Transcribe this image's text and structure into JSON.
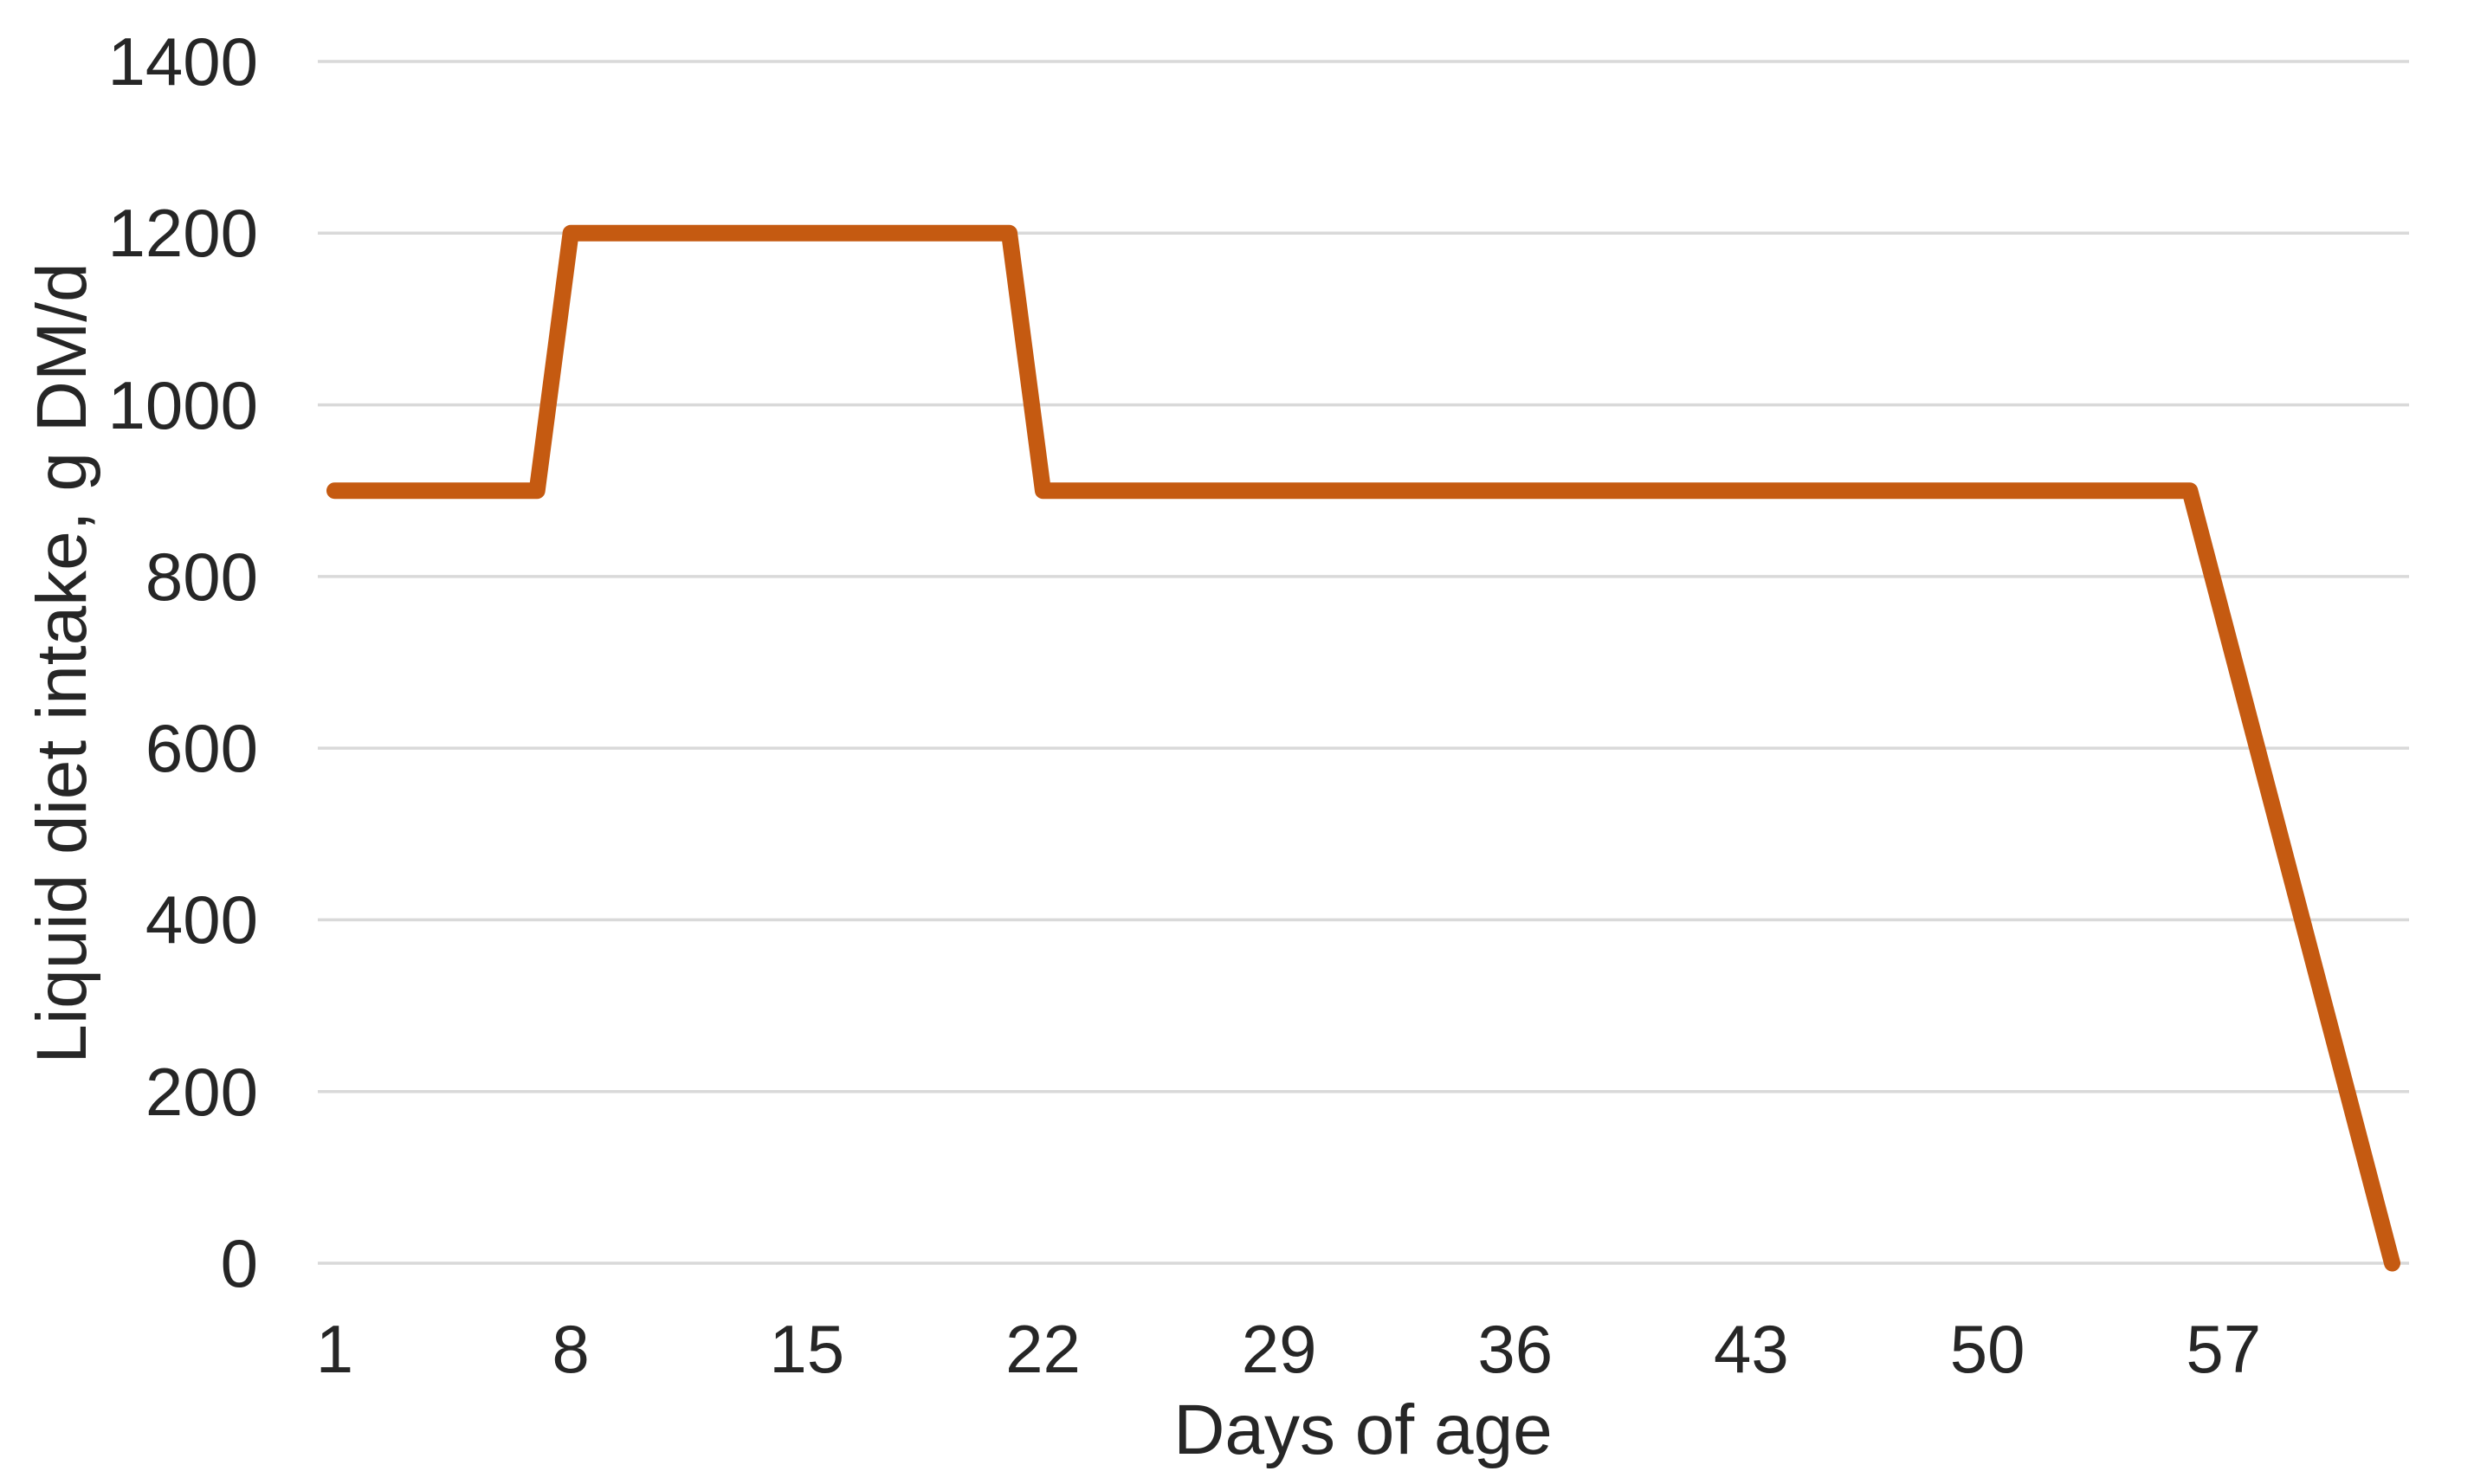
{
  "chart": {
    "y_title": "Liquid diet intake, g DM/d",
    "x_title": "Days of age"
  },
  "chart_data": {
    "type": "line",
    "title": "",
    "xlabel": "Days of age",
    "ylabel": "Liquid diet intake, g DM/d",
    "x_ticks": [
      1,
      8,
      15,
      22,
      29,
      36,
      43,
      50,
      57
    ],
    "y_ticks": [
      0,
      200,
      400,
      600,
      800,
      1000,
      1200,
      1400
    ],
    "xlim": [
      0.5,
      62.5
    ],
    "ylim": [
      0,
      1400
    ],
    "grid": "horizontal-only",
    "legend_position": "none",
    "series": [
      {
        "name": "Liquid diet intake",
        "color": "#C55A11",
        "points": [
          {
            "x": 1,
            "y": 900
          },
          {
            "x": 7,
            "y": 900
          },
          {
            "x": 8,
            "y": 1200
          },
          {
            "x": 21,
            "y": 1200
          },
          {
            "x": 22,
            "y": 900
          },
          {
            "x": 56,
            "y": 900
          },
          {
            "x": 62,
            "y": 0
          }
        ]
      }
    ],
    "colors": {
      "line": "#C55A11",
      "gridline": "#D9D9D9",
      "text": "#262626",
      "background": "#FFFFFF"
    }
  }
}
